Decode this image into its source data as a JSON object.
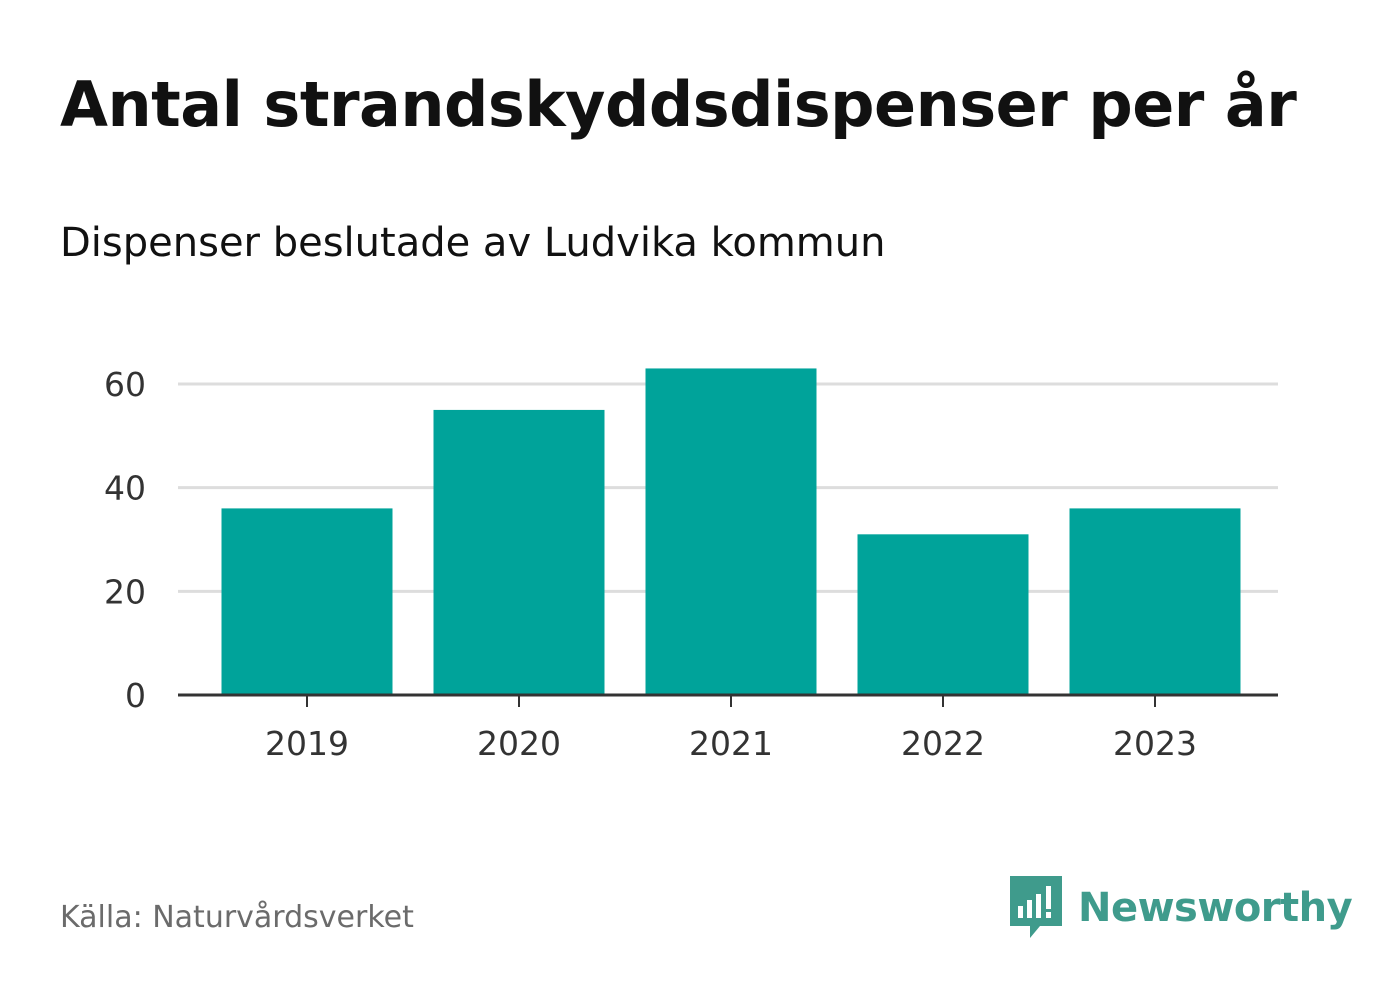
{
  "title": "Antal strandskyddsdispenser per år",
  "subtitle": "Dispenser beslutade av Ludvika kommun",
  "source": "Källa: Naturvårdsverket",
  "brand": {
    "name": "Newsworthy",
    "icon": "newsworthy-logo-icon",
    "color": "#3f9b8c"
  },
  "colors": {
    "bar": "#00a39a",
    "grid": "#dddddd",
    "axis": "#333333"
  },
  "chart_data": {
    "type": "bar",
    "title": "Antal strandskyddsdispenser per år",
    "subtitle": "Dispenser beslutade av Ludvika kommun",
    "categories": [
      "2019",
      "2020",
      "2021",
      "2022",
      "2023"
    ],
    "values": [
      36,
      55,
      63,
      31,
      36
    ],
    "xlabel": "",
    "ylabel": "",
    "ylim": [
      0,
      60
    ],
    "yticks": [
      "0",
      "20",
      "40",
      "60"
    ],
    "grid": true,
    "legend": "none"
  }
}
